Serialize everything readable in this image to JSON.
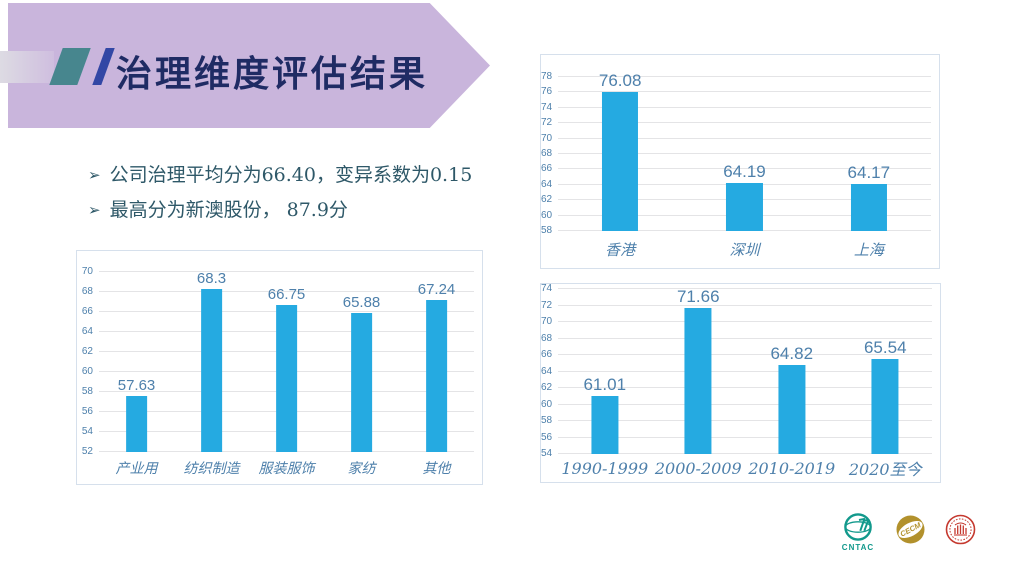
{
  "slide": {
    "title": "治理维度评估结果",
    "bullet_marker": "➢",
    "bullets": [
      "公司治理平均分为66.40，变异系数为0.15",
      "最高分为新澳股份， 87.9分"
    ]
  },
  "colors": {
    "banner": "#C9B5DC",
    "title_text": "#1F2B64",
    "teal_slash": "#47868E",
    "blue_slash": "#3247A5",
    "bullet_text": "#2E5868",
    "bar_fill": "#25AAE1",
    "label_blue": "#4E80AB",
    "gridline": "#E4E4E6",
    "chart_border": "#D6E0EC",
    "cntac_green": "#12998C",
    "cecm_gold": "#B2912C",
    "seal_red": "#C5392F"
  },
  "chart_data": [
    {
      "type": "bar",
      "title": "",
      "xlabel": "",
      "ylabel": "",
      "categories": [
        "产业用",
        "纺织制造",
        "服装服饰",
        "家纺",
        "其他"
      ],
      "values": [
        57.63,
        68.3,
        66.75,
        65.88,
        67.24
      ],
      "ylim": [
        52,
        70
      ],
      "ytick_step": 2,
      "grid": true,
      "legend": "none",
      "bar_color": "#25AAE1"
    },
    {
      "type": "bar",
      "title": "",
      "xlabel": "",
      "ylabel": "",
      "categories": [
        "香港",
        "深圳",
        "上海"
      ],
      "values": [
        76.08,
        64.19,
        64.17
      ],
      "ylim": [
        58,
        78
      ],
      "ytick_step": 2,
      "grid": true,
      "legend": "none",
      "bar_color": "#25AAE1"
    },
    {
      "type": "bar",
      "title": "",
      "xlabel": "",
      "ylabel": "",
      "categories": [
        "1990-1999",
        "2000-2009",
        "2010-2019",
        "2020至今"
      ],
      "values": [
        61.01,
        71.66,
        64.82,
        65.54
      ],
      "ylim": [
        54,
        74
      ],
      "ytick_step": 2,
      "grid": true,
      "legend": "none",
      "bar_color": "#25AAE1"
    }
  ],
  "footer": {
    "logos": [
      {
        "label": "CNTAC"
      },
      {
        "label": "CECM"
      },
      {
        "label": ""
      }
    ]
  }
}
